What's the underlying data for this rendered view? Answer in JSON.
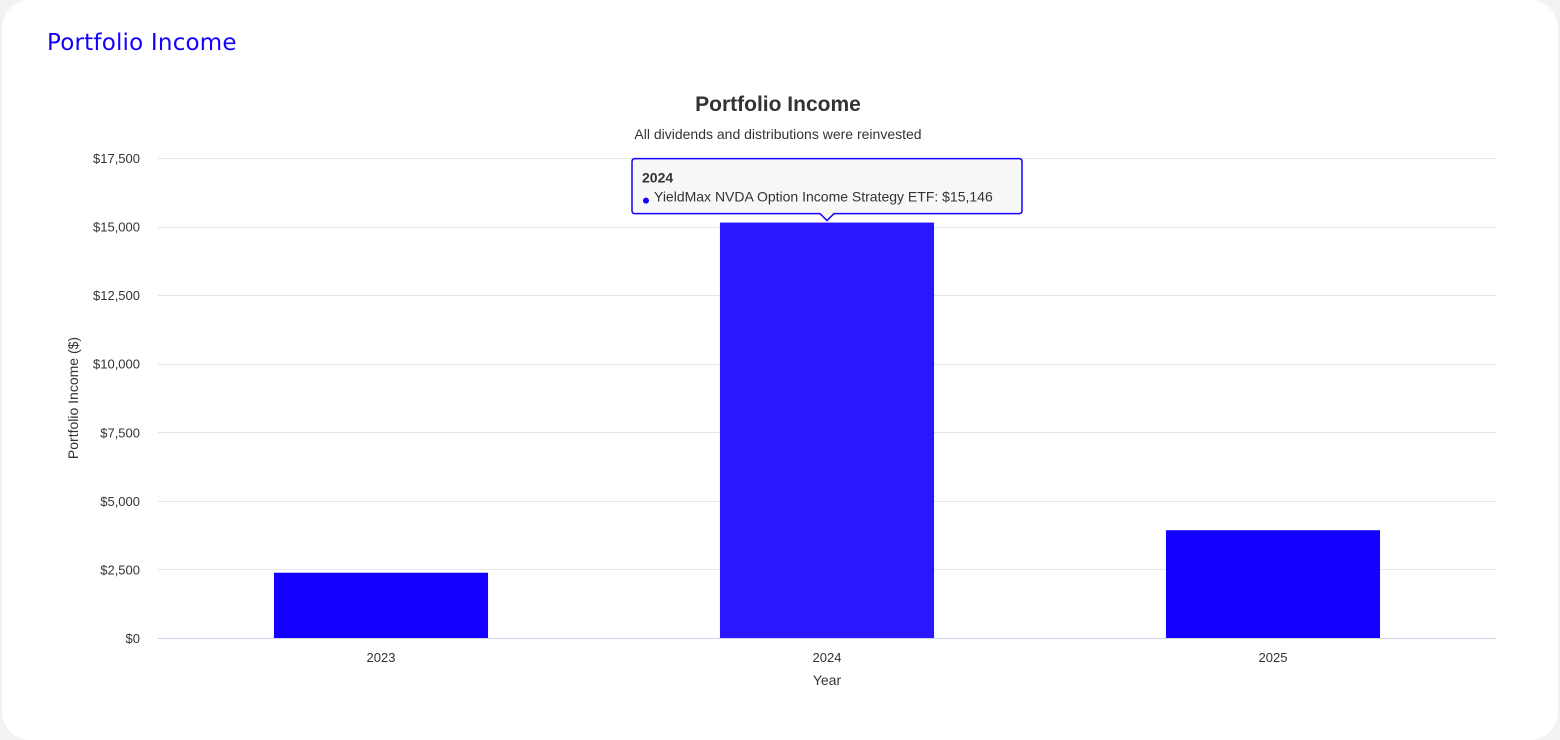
{
  "page": {
    "card_title": "Portfolio Income"
  },
  "colors": {
    "accent": "#1400ff",
    "bar": "#1400ff",
    "bar_hover": "#2a17ff",
    "text": "#333333",
    "grid": "#e6e6e6",
    "baseline": "#ccd6eb",
    "tooltip_bg": "#f7f7f7"
  },
  "chart_data": {
    "type": "bar",
    "title": "Portfolio Income",
    "subtitle": "All dividends and distributions were reinvested",
    "xlabel": "Year",
    "ylabel": "Portfolio Income ($)",
    "categories": [
      "2023",
      "2024",
      "2025"
    ],
    "series": [
      {
        "name": "YieldMax NVDA Option Income Strategy ETF",
        "values": [
          2380,
          15146,
          3930
        ]
      }
    ],
    "ylim": [
      0,
      17500
    ],
    "yticks": [
      0,
      2500,
      5000,
      7500,
      10000,
      12500,
      15000,
      17500
    ],
    "ytick_labels": [
      "$0",
      "$2,500",
      "$5,000",
      "$7,500",
      "$10,000",
      "$12,500",
      "$15,000",
      "$17,500"
    ],
    "grid": true,
    "legend": "none",
    "tooltip": {
      "category_index": 1,
      "header": "2024",
      "text": "YieldMax NVDA Option Income Strategy ETF: $15,146"
    }
  }
}
